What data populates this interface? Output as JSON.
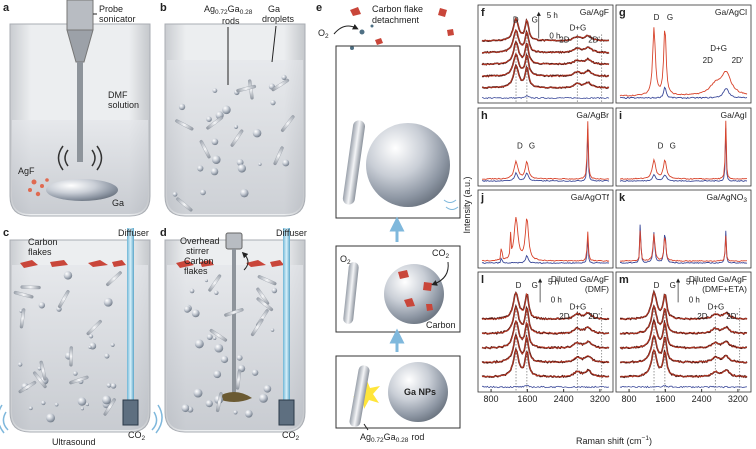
{
  "panel_a": {
    "letter": "a",
    "probe": [
      "Probe",
      "sonicator"
    ],
    "solution": [
      "DMF",
      "solution"
    ],
    "salt": "AgF",
    "metal": "Ga"
  },
  "panel_b": {
    "letter": "b",
    "rods_formula": [
      "Ag",
      "0.72",
      "Ga",
      "0.28"
    ],
    "rods_word": "rods",
    "droplets": [
      "Ga",
      "droplets"
    ]
  },
  "panel_c": {
    "letter": "c",
    "flakes": [
      "Carbon",
      "flakes"
    ],
    "diffuser": "Diffuser",
    "gas": [
      "CO",
      "2"
    ],
    "ultrasound": "Ultrasound"
  },
  "panel_d": {
    "letter": "d",
    "stirrer": [
      "Overhead",
      "stirrer"
    ],
    "flakes": [
      "Carbon",
      "flakes"
    ],
    "diffuser": "Diffuser",
    "gas": [
      "CO",
      "2"
    ]
  },
  "panel_e": {
    "letter": "e",
    "detachment": [
      "Carbon flake",
      "detachment"
    ],
    "oxygen_top": [
      "O",
      "2"
    ],
    "gas": [
      "CO",
      "2"
    ],
    "oxygen_mid": [
      "O",
      "2"
    ],
    "carbon": "Carbon",
    "particles": "Ga NPs",
    "rod_formula": [
      "Ag",
      "0.72",
      "Ga",
      "0.28"
    ],
    "rod_word": "rod"
  },
  "spectra": [
    {
      "letter": "f",
      "title": [
        [
          "Ga/AgF"
        ]
      ],
      "labels": [
        "D",
        "G",
        "5 h",
        "0 h",
        "D+G",
        "2D",
        "2D'"
      ]
    },
    {
      "letter": "g",
      "title": [
        [
          "Ga/AgCl"
        ]
      ],
      "labels": [
        "D",
        "G",
        "D+G",
        "2D",
        "2D'"
      ]
    },
    {
      "letter": "h",
      "title": [
        [
          "Ga/AgBr"
        ]
      ],
      "labels": [
        "D",
        "G"
      ]
    },
    {
      "letter": "i",
      "title": [
        [
          "Ga/AgI"
        ]
      ],
      "labels": [
        "D",
        "G"
      ]
    },
    {
      "letter": "j",
      "title": [
        [
          "Ga/AgOTf"
        ]
      ]
    },
    {
      "letter": "k",
      "title": [
        [
          "Ga/AgNO",
          "3"
        ]
      ]
    },
    {
      "letter": "l",
      "title": [
        [
          "Diluted Ga/AgF"
        ],
        [
          "(DMF)"
        ]
      ],
      "labels": [
        "D",
        "G",
        "5 h",
        "0 h",
        "D+G",
        "2D",
        "2D'"
      ]
    },
    {
      "letter": "m",
      "title": [
        [
          "Diluted Ga/AgF"
        ],
        [
          "(DMF+ETA)"
        ]
      ],
      "labels": [
        "D",
        "G",
        "5 h",
        "0 h",
        "D+G",
        "2D",
        "2D'"
      ]
    }
  ],
  "y_label": "Intensity (a.u.)",
  "x_label": [
    "Raman shift (cm",
    "−1",
    ")"
  ],
  "xticks": [
    800,
    1600,
    2400,
    3200
  ]
}
